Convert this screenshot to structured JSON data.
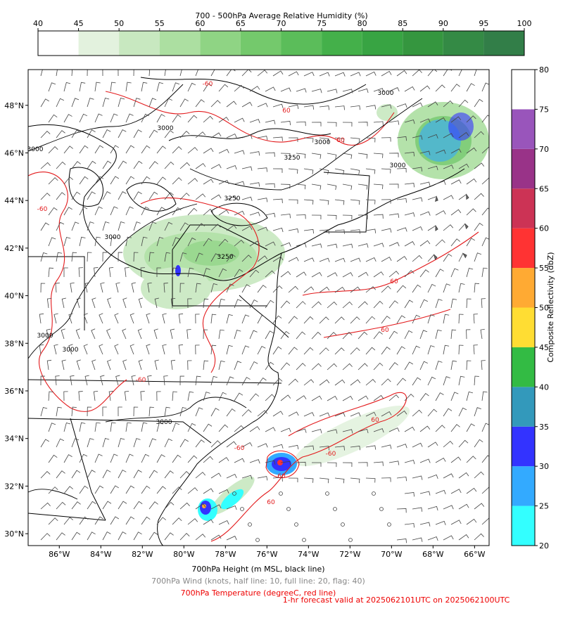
{
  "top_colorbar": {
    "title": "700 - 500hPa Average Relative Humidity (%)",
    "ticks": [
      40,
      45,
      50,
      55,
      60,
      65,
      70,
      75,
      80,
      85,
      90,
      95,
      100
    ],
    "colors": [
      "#ffffff",
      "#e3f2de",
      "#c8e8c0",
      "#acdfa1",
      "#8fd484",
      "#74c96c",
      "#5bbd5a",
      "#44b04a",
      "#38a443",
      "#35963f",
      "#348a45",
      "#327e48",
      "#337350"
    ]
  },
  "right_colorbar": {
    "label": "Composite Reflectivity (dbZ)",
    "ticks": [
      20,
      25,
      30,
      35,
      40,
      45,
      50,
      55,
      60,
      65,
      70,
      75,
      80
    ],
    "colors": [
      "#33ffff",
      "#33aaff",
      "#3333ff",
      "#3399bb",
      "#33bb44",
      "#ffdd33",
      "#ffaa33",
      "#ff3333",
      "#cc3355",
      "#993388",
      "#9955bb",
      "#ffffff"
    ]
  },
  "map": {
    "xlim": [
      -87.5,
      -65.3
    ],
    "ylim": [
      29.5,
      49.5
    ],
    "xticks": [
      {
        "value": -86,
        "label": "86°W"
      },
      {
        "value": -84,
        "label": "84°W"
      },
      {
        "value": -82,
        "label": "82°W"
      },
      {
        "value": -80,
        "label": "80°W"
      },
      {
        "value": -78,
        "label": "78°W"
      },
      {
        "value": -76,
        "label": "76°W"
      },
      {
        "value": -74,
        "label": "74°W"
      },
      {
        "value": -72,
        "label": "72°W"
      },
      {
        "value": -70,
        "label": "70°W"
      },
      {
        "value": -68,
        "label": "68°W"
      },
      {
        "value": -66,
        "label": "66°W"
      }
    ],
    "yticks": [
      {
        "value": 30,
        "label": "30°N"
      },
      {
        "value": 32,
        "label": "32°N"
      },
      {
        "value": 34,
        "label": "34°N"
      },
      {
        "value": 36,
        "label": "36°N"
      },
      {
        "value": 38,
        "label": "38°N"
      },
      {
        "value": 40,
        "label": "40°N"
      },
      {
        "value": 42,
        "label": "42°N"
      },
      {
        "value": 44,
        "label": "44°N"
      },
      {
        "value": 46,
        "label": "46°N"
      },
      {
        "value": 48,
        "label": "48°N"
      }
    ],
    "height_labels": [
      "3000",
      "3000",
      "3000",
      "3250",
      "3250",
      "3000",
      "3000",
      "3000",
      "3000",
      "3250",
      "3000",
      "3000"
    ],
    "temperature_labels": [
      "-60",
      "60",
      "60",
      "-60",
      "60",
      "-60",
      "60",
      "60",
      "-60",
      "60",
      "-60",
      "60"
    ]
  },
  "captions": [
    "700hPa Height (m MSL, black line)",
    "700hPa Wind (knots, half line: 10, full line: 20, flag: 40)",
    "700hPa Temperature (degreeC, red line)",
    "1-hr forecast valid at 2025062101UTC on 2025062100UTC"
  ]
}
